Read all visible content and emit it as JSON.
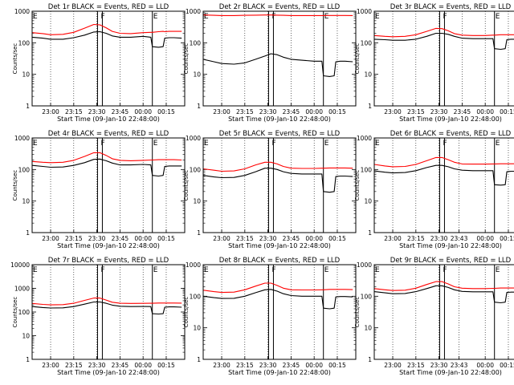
{
  "chart_data": [
    {
      "type": "line",
      "title": "Det 1r BLACK = Events, RED = LLD",
      "xlabel": "Start Time (09-Jan-10 22:48:00)",
      "ylabel": "Counts/sec",
      "yscale": "log",
      "ylim": [
        1,
        1000
      ],
      "y_ticks": [
        "1",
        "10",
        "100",
        "1000"
      ],
      "xlim": [
        "22:48",
        "00:27"
      ],
      "x_ticks": [
        "23:00",
        "23:15",
        "23:30",
        "23:45",
        "00:00",
        "00:15"
      ],
      "markers": [
        {
          "label": "E",
          "time": "22:48"
        },
        {
          "label": "F",
          "time": "23:32"
        },
        {
          "label": "E",
          "time": "00:06"
        }
      ],
      "x": [
        "22:48",
        "22:55",
        "23:00",
        "23:08",
        "23:15",
        "23:22",
        "23:28",
        "23:32",
        "23:36",
        "23:40",
        "23:45",
        "23:52",
        "00:00",
        "00:05",
        "00:06",
        "00:10",
        "00:13",
        "00:14",
        "00:17",
        "00:20",
        "00:25"
      ],
      "series": [
        {
          "name": "Events",
          "color": "#000000",
          "values": [
            150,
            140,
            130,
            130,
            145,
            175,
            220,
            225,
            200,
            165,
            150,
            150,
            160,
            150,
            75,
            72,
            75,
            140,
            145,
            145,
            140
          ]
        },
        {
          "name": "LLD",
          "color": "#ff0000",
          "values": [
            210,
            195,
            180,
            185,
            215,
            290,
            380,
            370,
            300,
            230,
            200,
            195,
            210,
            215,
            215,
            225,
            230,
            225,
            230,
            230,
            230
          ]
        }
      ]
    },
    {
      "type": "line",
      "title": "Det 2r BLACK = Events, RED = LLD",
      "xlabel": "Start Time (09-Jan-10 22:48:00)",
      "ylabel": "Counts/sec",
      "yscale": "log",
      "ylim": [
        1,
        1000
      ],
      "y_ticks": [
        "1",
        "10",
        "100",
        "1000"
      ],
      "xlim": [
        "22:48",
        "00:27"
      ],
      "x_ticks": [
        "23:00",
        "23:15",
        "23:30",
        "23:45",
        "00:00",
        "00:15"
      ],
      "markers": [
        {
          "label": "E",
          "time": "22:48"
        },
        {
          "label": "F",
          "time": "23:32"
        },
        {
          "label": "E",
          "time": "00:06"
        }
      ],
      "x": [
        "22:48",
        "22:55",
        "23:00",
        "23:08",
        "23:15",
        "23:22",
        "23:28",
        "23:32",
        "23:36",
        "23:40",
        "23:45",
        "23:52",
        "00:00",
        "00:05",
        "00:06",
        "00:10",
        "00:13",
        "00:14",
        "00:17",
        "00:20",
        "00:25"
      ],
      "series": [
        {
          "name": "Events",
          "color": "#000000",
          "values": [
            30,
            25,
            22,
            21,
            23,
            30,
            38,
            45,
            42,
            35,
            30,
            28,
            26,
            26,
            9,
            8.5,
            9,
            25,
            26,
            26,
            25
          ]
        },
        {
          "name": "LLD",
          "color": "#ff0000",
          "values": [
            760,
            740,
            730,
            730,
            740,
            750,
            760,
            760,
            750,
            740,
            730,
            730,
            730,
            730,
            730,
            735,
            735,
            735,
            735,
            735,
            730
          ]
        }
      ]
    },
    {
      "type": "line",
      "title": "Det 3r BLACK = Events, RED = LLD",
      "xlabel": "Start Time (09-Jan-10 22:48:00)",
      "ylabel": "Counts/sec",
      "yscale": "log",
      "ylim": [
        1,
        1000
      ],
      "y_ticks": [
        "1",
        "10",
        "100",
        "1000"
      ],
      "xlim": [
        "22:48",
        "00:27"
      ],
      "x_ticks": [
        "23:00",
        "23:15",
        "23:30",
        "23:45",
        "00:00",
        "00:15"
      ],
      "markers": [
        {
          "label": "E",
          "time": "22:48"
        },
        {
          "label": "F",
          "time": "23:32"
        },
        {
          "label": "E",
          "time": "00:06"
        }
      ],
      "x": [
        "22:48",
        "22:55",
        "23:00",
        "23:08",
        "23:15",
        "23:22",
        "23:28",
        "23:32",
        "23:36",
        "23:40",
        "23:45",
        "23:52",
        "00:00",
        "00:05",
        "00:06",
        "00:10",
        "00:13",
        "00:14",
        "00:17",
        "00:20",
        "00:25"
      ],
      "series": [
        {
          "name": "Events",
          "color": "#000000",
          "values": [
            130,
            125,
            120,
            120,
            130,
            160,
            200,
            200,
            185,
            160,
            140,
            135,
            135,
            135,
            65,
            62,
            65,
            125,
            130,
            130,
            130
          ]
        },
        {
          "name": "LLD",
          "color": "#ff0000",
          "values": [
            170,
            160,
            155,
            160,
            180,
            230,
            285,
            280,
            240,
            195,
            175,
            170,
            170,
            175,
            175,
            180,
            180,
            180,
            180,
            180,
            180
          ]
        }
      ]
    },
    {
      "type": "line",
      "title": "Det 4r BLACK = Events, RED = LLD",
      "xlabel": "Start Time (09-Jan-10 22:48:00)",
      "ylabel": "Counts/sec",
      "yscale": "log",
      "ylim": [
        1,
        1000
      ],
      "y_ticks": [
        "1",
        "10",
        "100",
        "1000"
      ],
      "xlim": [
        "22:48",
        "00:27"
      ],
      "x_ticks": [
        "23:00",
        "23:15",
        "23:30",
        "23:45",
        "00:00",
        "00:15"
      ],
      "markers": [
        {
          "label": "E",
          "time": "22:48"
        },
        {
          "label": "F",
          "time": "23:32"
        },
        {
          "label": "E",
          "time": "00:06"
        }
      ],
      "x": [
        "22:48",
        "22:55",
        "23:00",
        "23:08",
        "23:15",
        "23:22",
        "23:28",
        "23:32",
        "23:36",
        "23:40",
        "23:45",
        "23:52",
        "00:00",
        "00:05",
        "00:06",
        "00:10",
        "00:13",
        "00:14",
        "00:17",
        "00:20",
        "00:25"
      ],
      "series": [
        {
          "name": "Events",
          "color": "#000000",
          "values": [
            135,
            125,
            118,
            120,
            135,
            165,
            210,
            215,
            190,
            160,
            140,
            140,
            145,
            140,
            65,
            62,
            65,
            125,
            130,
            130,
            130
          ]
        },
        {
          "name": "LLD",
          "color": "#ff0000",
          "values": [
            180,
            170,
            165,
            170,
            195,
            260,
            340,
            340,
            280,
            220,
            195,
            190,
            195,
            200,
            200,
            205,
            205,
            205,
            205,
            205,
            200
          ]
        }
      ]
    },
    {
      "type": "line",
      "title": "Det 5r BLACK = Events, RED = LLD",
      "xlabel": "Start Time (09-Jan-10 22:48:00)",
      "ylabel": "Counts/sec",
      "yscale": "log",
      "ylim": [
        1,
        1000
      ],
      "y_ticks": [
        "1",
        "10",
        "100",
        "1000"
      ],
      "xlim": [
        "22:48",
        "00:27"
      ],
      "x_ticks": [
        "23:00",
        "23:15",
        "23:30",
        "23:45",
        "00:00",
        "00:15"
      ],
      "markers": [
        {
          "label": "E",
          "time": "22:48"
        },
        {
          "label": "F",
          "time": "23:32"
        },
        {
          "label": "E",
          "time": "00:06"
        }
      ],
      "x": [
        "22:48",
        "22:55",
        "23:00",
        "23:08",
        "23:15",
        "23:22",
        "23:28",
        "23:32",
        "23:36",
        "23:40",
        "23:45",
        "23:52",
        "00:00",
        "00:05",
        "00:06",
        "00:10",
        "00:13",
        "00:14",
        "00:17",
        "00:20",
        "00:25"
      ],
      "series": [
        {
          "name": "Events",
          "color": "#000000",
          "values": [
            65,
            58,
            55,
            56,
            65,
            85,
            110,
            110,
            100,
            85,
            75,
            72,
            72,
            72,
            20,
            19,
            20,
            60,
            62,
            62,
            60
          ]
        },
        {
          "name": "LLD",
          "color": "#ff0000",
          "values": [
            105,
            95,
            88,
            90,
            105,
            140,
            170,
            170,
            150,
            125,
            110,
            108,
            108,
            110,
            110,
            112,
            112,
            112,
            112,
            112,
            110
          ]
        }
      ]
    },
    {
      "type": "line",
      "title": "Det 6r BLACK = Events, RED = LLD",
      "xlabel": "Start Time (09-Jan-10 22:48:00)",
      "ylabel": "Counts/sec",
      "yscale": "log",
      "ylim": [
        1,
        1000
      ],
      "y_ticks": [
        "1",
        "10",
        "100",
        "1000"
      ],
      "xlim": [
        "22:48",
        "00:27"
      ],
      "x_ticks": [
        "23:00",
        "23:15",
        "23:30",
        "23:43",
        "00:00",
        "00:15"
      ],
      "markers": [
        {
          "label": "E",
          "time": "22:48"
        },
        {
          "label": "F",
          "time": "23:32"
        },
        {
          "label": "E",
          "time": "00:06"
        }
      ],
      "x": [
        "22:48",
        "22:55",
        "23:00",
        "23:08",
        "23:15",
        "23:22",
        "23:28",
        "23:32",
        "23:36",
        "23:40",
        "23:45",
        "23:52",
        "00:00",
        "00:05",
        "00:06",
        "00:10",
        "00:13",
        "00:14",
        "00:17",
        "00:20",
        "00:25"
      ],
      "series": [
        {
          "name": "Events",
          "color": "#000000",
          "values": [
            90,
            82,
            78,
            80,
            92,
            115,
            135,
            135,
            122,
            105,
            95,
            92,
            92,
            92,
            33,
            32,
            33,
            85,
            88,
            88,
            85
          ]
        },
        {
          "name": "LLD",
          "color": "#ff0000",
          "values": [
            145,
            130,
            122,
            125,
            145,
            190,
            240,
            240,
            205,
            170,
            150,
            148,
            148,
            150,
            150,
            152,
            152,
            152,
            152,
            152,
            150
          ]
        }
      ]
    },
    {
      "type": "line",
      "title": "Det 7r BLACK = Events, RED = LLD",
      "xlabel": "Start Time (09-Jan-10 22:48:00)",
      "ylabel": "Counts/sec",
      "yscale": "log",
      "ylim": [
        1,
        10000
      ],
      "y_ticks": [
        "1",
        "10",
        "100",
        "1000",
        "10000"
      ],
      "xlim": [
        "22:48",
        "00:27"
      ],
      "x_ticks": [
        "23:00",
        "23:15",
        "23:30",
        "23:45",
        "00:00",
        "00:15"
      ],
      "markers": [
        {
          "label": "E",
          "time": "22:48"
        },
        {
          "label": "F",
          "time": "23:32"
        },
        {
          "label": "E",
          "time": "00:06"
        }
      ],
      "x": [
        "22:48",
        "22:55",
        "23:00",
        "23:08",
        "23:15",
        "23:22",
        "23:28",
        "23:32",
        "23:36",
        "23:40",
        "23:45",
        "23:52",
        "00:00",
        "00:05",
        "00:06",
        "00:10",
        "00:13",
        "00:14",
        "00:17",
        "00:20",
        "00:25"
      ],
      "series": [
        {
          "name": "Events",
          "color": "#000000",
          "values": [
            170,
            155,
            148,
            150,
            170,
            215,
            265,
            265,
            235,
            195,
            175,
            170,
            172,
            170,
            85,
            82,
            85,
            160,
            165,
            165,
            160
          ]
        },
        {
          "name": "LLD",
          "color": "#ff0000",
          "values": [
            230,
            210,
            200,
            205,
            235,
            310,
            390,
            390,
            320,
            260,
            235,
            230,
            232,
            235,
            235,
            240,
            240,
            240,
            240,
            240,
            238
          ]
        }
      ]
    },
    {
      "type": "line",
      "title": "Det 8r BLACK = Events, RED = LLD",
      "xlabel": "Start Time (09-Jan-10 22:48:00)",
      "ylabel": "Counts/sec",
      "yscale": "log",
      "ylim": [
        1,
        1000
      ],
      "y_ticks": [
        "1",
        "10",
        "100",
        "1000"
      ],
      "xlim": [
        "22:48",
        "00:27"
      ],
      "x_ticks": [
        "23:00",
        "23:15",
        "23:30",
        "23:45",
        "00:00",
        "00:15"
      ],
      "markers": [
        {
          "label": "E",
          "time": "22:48"
        },
        {
          "label": "F",
          "time": "23:32"
        },
        {
          "label": "E",
          "time": "00:06"
        }
      ],
      "x": [
        "22:48",
        "22:55",
        "23:00",
        "23:08",
        "23:15",
        "23:22",
        "23:28",
        "23:32",
        "23:36",
        "23:40",
        "23:45",
        "23:52",
        "00:00",
        "00:05",
        "00:06",
        "00:10",
        "00:13",
        "00:14",
        "00:17",
        "00:20",
        "00:25"
      ],
      "series": [
        {
          "name": "Events",
          "color": "#000000",
          "values": [
            100,
            90,
            85,
            86,
            100,
            130,
            160,
            165,
            145,
            120,
            105,
            100,
            100,
            100,
            42,
            40,
            42,
            95,
            98,
            98,
            95
          ]
        },
        {
          "name": "LLD",
          "color": "#ff0000",
          "values": [
            155,
            140,
            132,
            135,
            160,
            210,
            260,
            260,
            220,
            180,
            160,
            158,
            158,
            160,
            160,
            165,
            165,
            165,
            165,
            165,
            162
          ]
        }
      ]
    },
    {
      "type": "line",
      "title": "Det 9r BLACK = Events, RED = LLD",
      "xlabel": "Start Time (09-Jan-10 22:48:00)",
      "ylabel": "Counts/sec",
      "yscale": "log",
      "ylim": [
        1,
        1000
      ],
      "y_ticks": [
        "1",
        "10",
        "100",
        "1000"
      ],
      "xlim": [
        "22:48",
        "00:27"
      ],
      "x_ticks": [
        "23:00",
        "23:15",
        "23:30",
        "23:43",
        "00:00",
        "00:15"
      ],
      "markers": [
        {
          "label": "E",
          "time": "22:48"
        },
        {
          "label": "F",
          "time": "23:32"
        },
        {
          "label": "E",
          "time": "00:06"
        }
      ],
      "x": [
        "22:48",
        "22:55",
        "23:00",
        "23:08",
        "23:15",
        "23:22",
        "23:28",
        "23:32",
        "23:36",
        "23:40",
        "23:45",
        "23:52",
        "00:00",
        "00:05",
        "00:06",
        "00:10",
        "00:13",
        "00:14",
        "00:17",
        "00:20",
        "00:25"
      ],
      "series": [
        {
          "name": "Events",
          "color": "#000000",
          "values": [
            140,
            128,
            120,
            122,
            140,
            175,
            215,
            215,
            190,
            160,
            142,
            138,
            138,
            138,
            65,
            62,
            65,
            132,
            135,
            135,
            132
          ]
        },
        {
          "name": "LLD",
          "color": "#ff0000",
          "values": [
            175,
            160,
            152,
            155,
            180,
            235,
            290,
            290,
            245,
            200,
            180,
            175,
            175,
            178,
            178,
            182,
            182,
            182,
            182,
            182,
            180
          ]
        }
      ]
    }
  ]
}
